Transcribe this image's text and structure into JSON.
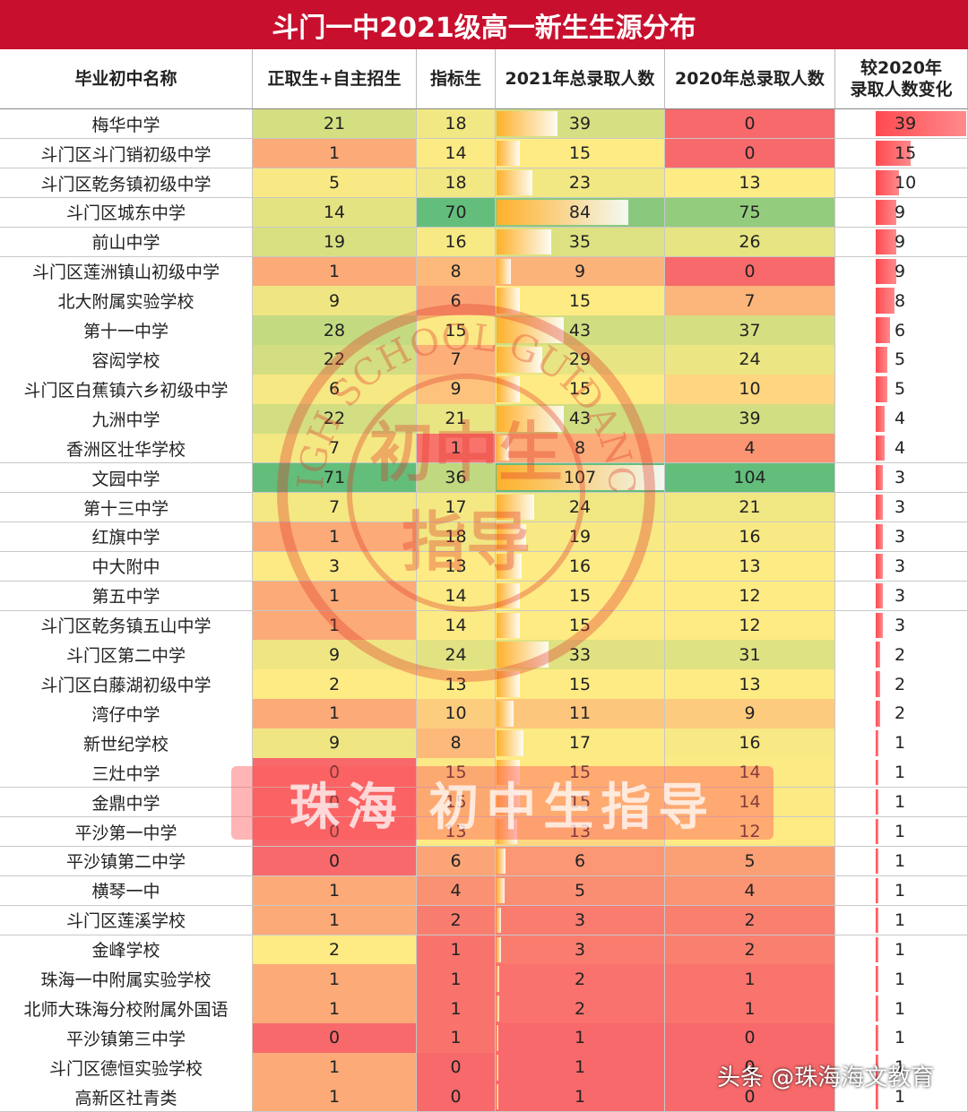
{
  "table": {
    "title": "斗门一中2021级高一新生生源分布",
    "headers": [
      [
        "毕业初中名称"
      ],
      [
        "正取生+自主招生"
      ],
      [
        "指标生"
      ],
      [
        "2021年总录取人数"
      ],
      [
        "2020年总录取人数"
      ],
      [
        "较2020年",
        "录取人数变化"
      ]
    ],
    "rows": [
      [
        "梅华中学",
        21,
        18,
        39,
        0,
        39
      ],
      [
        "斗门区斗门销初级中学",
        1,
        14,
        15,
        0,
        15
      ],
      [
        "斗门区乾务镇初级中学",
        5,
        18,
        23,
        13,
        10
      ],
      [
        "斗门区城东中学",
        14,
        70,
        84,
        75,
        9
      ],
      [
        "前山中学",
        19,
        16,
        35,
        26,
        9
      ],
      [
        "斗门区莲洲镇山初级中学",
        1,
        8,
        9,
        0,
        9
      ],
      [
        "北大附属实验学校",
        9,
        6,
        15,
        7,
        8
      ],
      [
        "第十一中学",
        28,
        15,
        43,
        37,
        6
      ],
      [
        "容闳学校",
        22,
        7,
        29,
        24,
        5
      ],
      [
        "斗门区白蕉镇六乡初级中学",
        6,
        9,
        15,
        10,
        5
      ],
      [
        "九洲中学",
        22,
        21,
        43,
        39,
        4
      ],
      [
        "香洲区壮华学校",
        7,
        1,
        8,
        4,
        4
      ],
      [
        "文园中学",
        71,
        36,
        107,
        104,
        3
      ],
      [
        "第十三中学",
        7,
        17,
        24,
        21,
        3
      ],
      [
        "红旗中学",
        1,
        18,
        19,
        16,
        3
      ],
      [
        "中大附中",
        3,
        13,
        16,
        13,
        3
      ],
      [
        "第五中学",
        1,
        14,
        15,
        12,
        3
      ],
      [
        "斗门区乾务镇五山中学",
        1,
        14,
        15,
        12,
        3
      ],
      [
        "斗门区第二中学",
        9,
        24,
        33,
        31,
        2
      ],
      [
        "斗门区白藤湖初级中学",
        2,
        13,
        15,
        13,
        2
      ],
      [
        "湾仔中学",
        1,
        10,
        11,
        9,
        2
      ],
      [
        "新世纪学校",
        9,
        8,
        17,
        16,
        1
      ],
      [
        "三灶中学",
        0,
        15,
        15,
        14,
        1
      ],
      [
        "金鼎中学",
        0,
        15,
        15,
        14,
        1
      ],
      [
        "平沙第一中学",
        0,
        13,
        13,
        12,
        1
      ],
      [
        "平沙镇第二中学",
        0,
        6,
        6,
        5,
        1
      ],
      [
        "横琴一中",
        1,
        4,
        5,
        4,
        1
      ],
      [
        "斗门区莲溪学校",
        1,
        2,
        3,
        2,
        1
      ],
      [
        "金峰学校",
        2,
        1,
        3,
        2,
        1
      ],
      [
        "珠海一中附属实验学校",
        1,
        1,
        2,
        1,
        1
      ],
      [
        "北师大珠海分校附属外国语",
        1,
        1,
        2,
        1,
        1
      ],
      [
        "平沙镇第三中学",
        0,
        1,
        1,
        0,
        1
      ],
      [
        "斗门区德恒实验学校",
        1,
        0,
        1,
        0,
        1
      ],
      [
        "高新区社青类",
        1,
        0,
        1,
        0,
        1
      ]
    ]
  },
  "watermarks": {
    "stamp_ring": "HIGH SCHOOL GUIDANCE",
    "stamp_lines": [
      "初中生",
      "指导"
    ],
    "banner": "珠海 初中生指导",
    "source": "头条 @珠海海文教育"
  }
}
